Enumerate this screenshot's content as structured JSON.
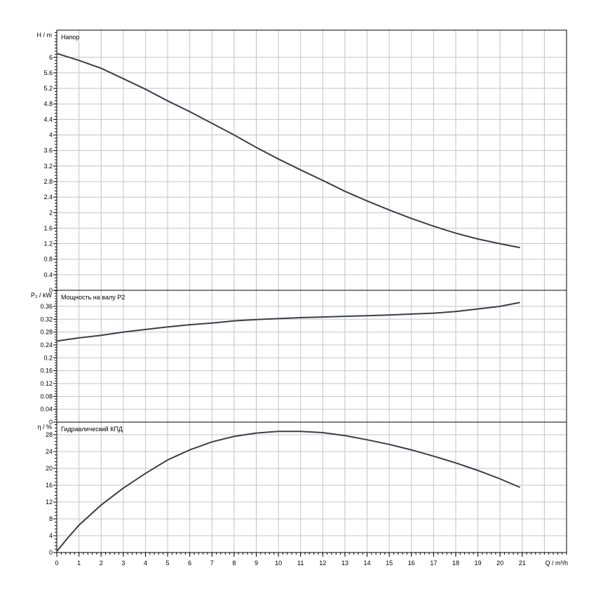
{
  "chart_data": [
    {
      "type": "line",
      "title": "Напор",
      "ylabel": "H / m",
      "ylim": [
        0,
        6.7
      ],
      "yticks": [
        0,
        0.4,
        0.8,
        1.2,
        1.6,
        2,
        2.4,
        2.8,
        3.2,
        3.6,
        4,
        4.4,
        4.8,
        5.2,
        5.6,
        6
      ],
      "x": [
        0,
        1,
        2,
        3,
        4,
        5,
        6,
        7,
        8,
        9,
        10,
        11,
        12,
        13,
        14,
        15,
        16,
        17,
        18,
        19,
        20,
        20.9
      ],
      "values": [
        6.1,
        5.92,
        5.72,
        5.45,
        5.18,
        4.88,
        4.6,
        4.3,
        4.0,
        3.68,
        3.38,
        3.1,
        2.83,
        2.55,
        2.3,
        2.07,
        1.85,
        1.65,
        1.47,
        1.32,
        1.2,
        1.1
      ]
    },
    {
      "type": "line",
      "title": "Мощность на валу P2",
      "ylabel": "P₂ / kW",
      "ylim": [
        0,
        0.41
      ],
      "yticks": [
        0,
        0.04,
        0.08,
        0.12,
        0.16,
        0.2,
        0.24,
        0.28,
        0.32,
        0.36
      ],
      "x": [
        0,
        1,
        2,
        3,
        4,
        5,
        6,
        7,
        8,
        9,
        10,
        11,
        12,
        13,
        14,
        15,
        16,
        17,
        18,
        19,
        20,
        20.9
      ],
      "values": [
        0.252,
        0.262,
        0.27,
        0.28,
        0.288,
        0.296,
        0.303,
        0.308,
        0.315,
        0.319,
        0.322,
        0.325,
        0.327,
        0.329,
        0.331,
        0.333,
        0.336,
        0.339,
        0.344,
        0.352,
        0.36,
        0.372
      ]
    },
    {
      "type": "line",
      "title": "Гидравлический КПД",
      "ylabel": "η / %",
      "ylim": [
        0,
        31
      ],
      "yticks": [
        0,
        4,
        8,
        12,
        16,
        20,
        24,
        28
      ],
      "x": [
        0,
        0.5,
        1,
        2,
        3,
        4,
        5,
        6,
        7,
        8,
        9,
        10,
        11,
        12,
        13,
        14,
        15,
        16,
        17,
        18,
        19,
        20,
        20.9
      ],
      "values": [
        0.3,
        3.5,
        6.5,
        11.3,
        15.3,
        18.8,
        22,
        24.4,
        26.3,
        27.6,
        28.4,
        28.8,
        28.8,
        28.5,
        27.8,
        26.8,
        25.7,
        24.4,
        22.9,
        21.3,
        19.5,
        17.5,
        15.5
      ]
    }
  ],
  "x_axis": {
    "label": "Q / m³/h",
    "xlim": [
      0,
      23
    ],
    "ticks": [
      0,
      1,
      2,
      3,
      4,
      5,
      6,
      7,
      8,
      9,
      10,
      11,
      12,
      13,
      14,
      15,
      16,
      17,
      18,
      19,
      20,
      21
    ]
  },
  "grid": true,
  "line_color": "#3a3f47"
}
